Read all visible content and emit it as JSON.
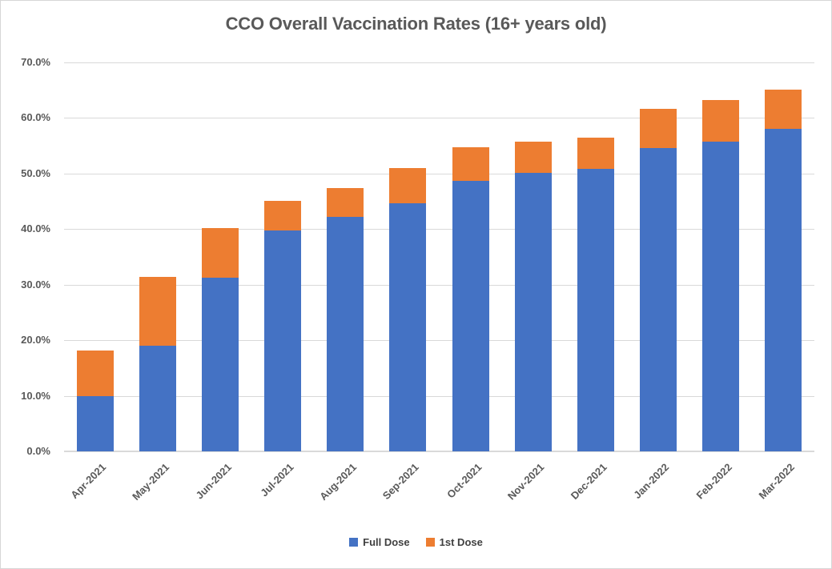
{
  "chart_data": {
    "type": "bar",
    "stacked": true,
    "title": "CCO Overall Vaccination Rates (16+ years old)",
    "categories": [
      "Apr-2021",
      "May-2021",
      "Jun-2021",
      "Jul-2021",
      "Aug-2021",
      "Sep-2021",
      "Oct-2021",
      "Nov-2021",
      "Dec-2021",
      "Jan-2022",
      "Feb-2022",
      "Mar-2022"
    ],
    "series": [
      {
        "name": "Full Dose",
        "color": "#4472C4",
        "values": [
          10.0,
          19.0,
          31.2,
          39.8,
          42.2,
          44.7,
          48.7,
          50.1,
          50.9,
          54.6,
          55.7,
          58.1
        ]
      },
      {
        "name": "1st Dose",
        "color": "#ED7D31",
        "values": [
          8.1,
          12.4,
          9.0,
          5.3,
          5.2,
          6.3,
          6.1,
          5.7,
          5.6,
          7.1,
          7.5,
          7.0
        ]
      }
    ],
    "stacked_totals": [
      18.1,
      31.4,
      40.2,
      45.1,
      47.4,
      51.0,
      54.8,
      55.8,
      56.5,
      61.7,
      63.2,
      65.1
    ],
    "xlabel": "",
    "ylabel": "",
    "ylim": [
      0,
      70
    ],
    "y_tick_step": 10,
    "y_tick_labels": [
      "0.0%",
      "10.0%",
      "20.0%",
      "30.0%",
      "40.0%",
      "50.0%",
      "60.0%",
      "70.0%"
    ],
    "grid": true,
    "legend_position": "bottom",
    "grid_color": "#D9D9D9",
    "text_color": "#595959"
  }
}
